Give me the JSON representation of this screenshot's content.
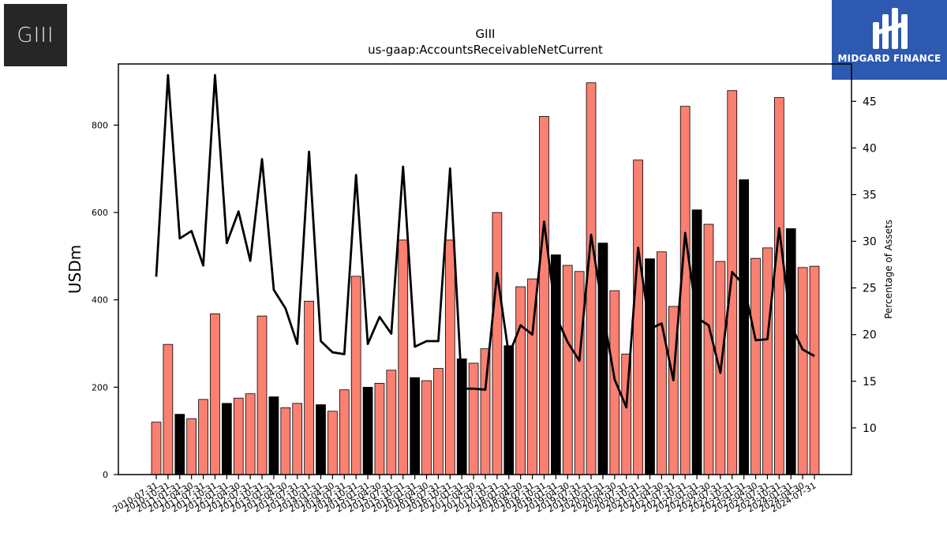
{
  "logos": {
    "left_text": "GIII",
    "right_text": "MIDGARD FINANCE"
  },
  "chart_data": {
    "type": "bar",
    "title": "GIII",
    "subtitle": "us-gaap:AccountsReceivableNetCurrent",
    "ylabel": "USDm",
    "y2label": "Percentage of Assets",
    "ylim": [
      0,
      940
    ],
    "y2lim": [
      5,
      49
    ],
    "yticks": [
      0,
      200,
      400,
      600,
      800
    ],
    "y2ticks": [
      10,
      15,
      20,
      25,
      30,
      35,
      40,
      45
    ],
    "xtick_labels": [
      "2010-07-31",
      "2010-10-31",
      "2011-01-31",
      "2011-04-30",
      "2011-07-31",
      "2011-10-31",
      "2012-01-31",
      "2012-04-30",
      "2012-07-31",
      "2012-10-31",
      "2013-01-31",
      "2013-04-30",
      "2013-07-31",
      "2013-10-31",
      "2014-01-31",
      "2014-04-30",
      "2014-07-31",
      "2014-10-31",
      "2015-01-31",
      "2015-04-30",
      "2015-07-31",
      "2015-10-31",
      "2016-01-31",
      "2016-04-30",
      "2016-07-31",
      "2016-10-31",
      "2017-01-31",
      "2017-04-30",
      "2017-07-31",
      "2017-10-31",
      "2018-01-31",
      "2018-04-30",
      "2018-07-31",
      "2018-10-31",
      "2019-01-31",
      "2019-04-30",
      "2019-07-31",
      "2019-10-31",
      "2020-01-31",
      "2020-04-30",
      "2020-07-31",
      "2020-10-31",
      "2021-01-31",
      "2021-04-30",
      "2021-07-31",
      "2021-10-31",
      "2022-01-31",
      "2022-04-30",
      "2022-07-31",
      "2022-10-31",
      "2023-01-31",
      "2023-04-30",
      "2023-07-31",
      "2023-10-31",
      "2024-01-31",
      "2024-04-30",
      "2024-07-31"
    ],
    "series": [
      {
        "values": [
          120,
          298,
          138,
          128,
          172,
          368,
          163,
          175,
          185,
          363,
          178,
          153,
          163,
          397,
          160,
          145,
          194,
          454,
          200,
          209,
          239,
          537,
          222,
          215,
          243,
          537,
          265,
          255,
          288,
          600,
          295,
          430,
          448,
          820,
          503,
          479,
          465,
          897,
          530,
          421,
          276,
          720,
          494,
          510,
          385,
          843,
          606,
          573,
          488,
          879,
          675,
          495,
          519,
          863,
          563,
          474,
          477
        ],
        "black_indices": [
          2,
          6,
          10,
          14,
          18,
          22,
          26,
          30,
          34,
          38,
          42,
          46,
          50,
          54
        ],
        "bar_color": "#fa8072",
        "highlight_color": "#000000"
      },
      {
        "axis": "secondary",
        "line_color": "#000000",
        "values": [
          26.2,
          47.8,
          30.3,
          31.1,
          27.4,
          47.8,
          29.8,
          33.2,
          27.9,
          38.8,
          24.8,
          22.8,
          19.0,
          39.6,
          19.3,
          18.1,
          17.9,
          37.1,
          19.0,
          21.9,
          20.1,
          38.0,
          18.7,
          19.3,
          19.3,
          37.8,
          14.2,
          14.2,
          14.1,
          26.6,
          17.8,
          21.0,
          20.0,
          32.1,
          22.0,
          19.2,
          17.2,
          30.7,
          22.5,
          15.2,
          12.2,
          29.3,
          20.6,
          21.2,
          15.1,
          30.9,
          21.8,
          21.0,
          15.9,
          26.7,
          25.3,
          19.4,
          19.5,
          31.4,
          21.0,
          18.4,
          17.7
        ]
      }
    ]
  }
}
